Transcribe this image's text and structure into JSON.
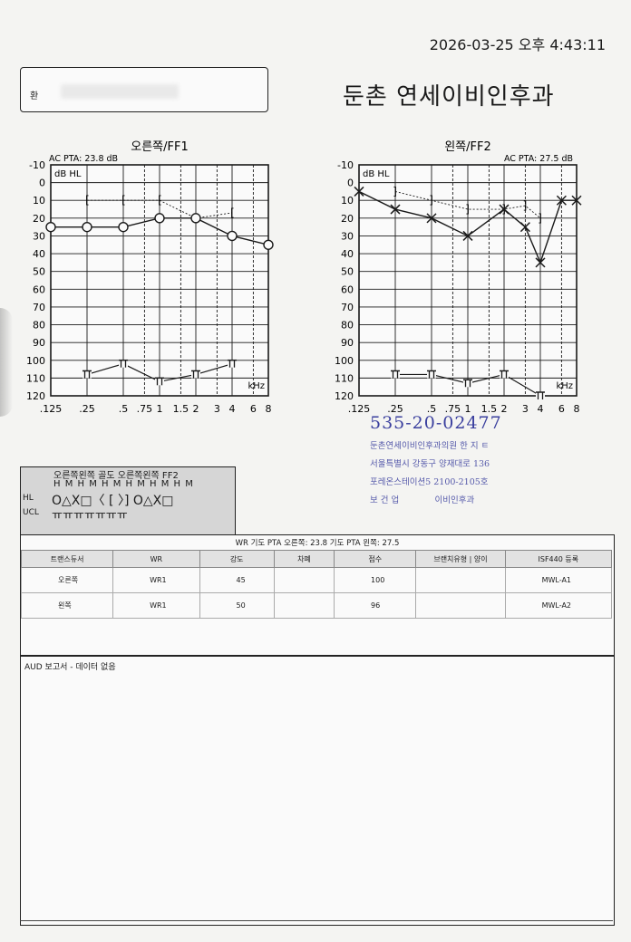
{
  "timestamp": "2026-03-25 오후 4:43:11",
  "patient_label": "환",
  "hospital_name": "둔촌 연세이비인후과",
  "right_ear": {
    "title": "오른쪽/FF1",
    "pta": "AC PTA: 23.8 dB",
    "unit": "dB HL",
    "khz": "kHz",
    "air_conduction": [
      [
        0.125,
        25
      ],
      [
        0.25,
        25
      ],
      [
        0.5,
        25
      ],
      [
        1,
        20
      ],
      [
        2,
        20
      ],
      [
        4,
        30
      ],
      [
        8,
        35
      ]
    ],
    "bone_conduction": [
      [
        0.25,
        10
      ],
      [
        0.5,
        10
      ],
      [
        1,
        10
      ],
      [
        2,
        20
      ],
      [
        4,
        17
      ]
    ],
    "ucl": [
      [
        0.25,
        108
      ],
      [
        0.5,
        102
      ],
      [
        1,
        112
      ],
      [
        2,
        108
      ],
      [
        4,
        102
      ]
    ]
  },
  "left_ear": {
    "title": "왼쪽/FF2",
    "pta": "AC PTA: 27.5 dB",
    "unit": "dB HL",
    "khz": "kHz",
    "air_conduction": [
      [
        0.125,
        5
      ],
      [
        0.25,
        15
      ],
      [
        0.5,
        20
      ],
      [
        1,
        30
      ],
      [
        2,
        15
      ],
      [
        3,
        25
      ],
      [
        4,
        45
      ],
      [
        6,
        10
      ],
      [
        8,
        10
      ]
    ],
    "bone_conduction": [
      [
        0.25,
        5
      ],
      [
        0.5,
        10
      ],
      [
        1,
        15
      ],
      [
        2,
        15
      ],
      [
        3,
        13
      ],
      [
        4,
        20
      ]
    ],
    "ucl": [
      [
        0.25,
        108
      ],
      [
        0.5,
        108
      ],
      [
        1,
        113
      ],
      [
        2,
        108
      ],
      [
        4,
        120
      ]
    ]
  },
  "y_ticks": [
    "-10",
    "0",
    "10",
    "20",
    "30",
    "40",
    "50",
    "60",
    "70",
    "80",
    "90",
    "100",
    "110",
    "120"
  ],
  "x_ticks": [
    ".125",
    ".25",
    ".5",
    ".75",
    "1",
    "1.5",
    "2",
    "3",
    "4",
    "6",
    "8"
  ],
  "colors": {
    "right": "#1a1a1a",
    "left": "#1a1a1a",
    "grid": "#1a1a1a",
    "stamp": "#3a3f9e"
  },
  "stamp": {
    "number": "535-20-02477",
    "line1": "둔촌연세이비인후과의원   한 지 ㅌ",
    "line2": "서울특별시 강동구 양재대로 136",
    "line3": "포레온스테이션5 2100-2105호",
    "line4_a": "보 건 업",
    "line4_b": "이비인후과"
  },
  "legend": {
    "header": "오른쪽왼쪽  골도 오른쪽왼쪽   FF2",
    "hm": "H M H M H M H M H M H M",
    "hl_label": "HL",
    "ucl_label": "UCL",
    "symbols": "O△X□〈 [ 〉] O△X□",
    "ucl_symbols": "ㅠㅠㅠㅠㅠㅠㅠ"
  },
  "wr": {
    "title": "WR  기도 PTA 오른쪽: 23.8  기도 PTA 왼쪽: 27.5",
    "headers": [
      "트랜스듀서",
      "WR",
      "강도",
      "차폐",
      "점수",
      "브랜치유형 | 양이",
      "ISF440 등록"
    ],
    "rows": [
      [
        "오른쪽",
        "WR1",
        "45",
        "",
        "100",
        "",
        "MWL-A1"
      ],
      [
        "왼쪽",
        "WR1",
        "50",
        "",
        "96",
        "",
        "MWL-A2"
      ]
    ]
  },
  "aud_report": "AUD 보고서 - 데이터 없음"
}
